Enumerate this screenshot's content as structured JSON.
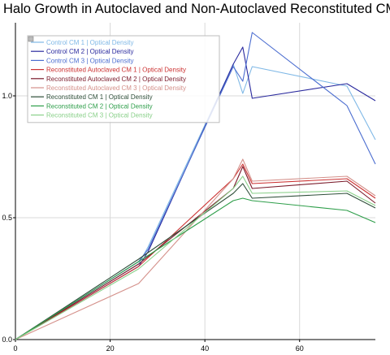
{
  "chart_data": {
    "type": "line",
    "title": "Halo Growth in Autoclaved and Non-Autoclaved Reconstituted CM",
    "xlabel": "",
    "ylabel": "",
    "xlim": [
      0,
      76
    ],
    "ylim": [
      0,
      1.3
    ],
    "x_ticks": [
      0,
      20,
      40,
      60
    ],
    "x_tick_labels": [
      "0",
      "20",
      "40",
      "60"
    ],
    "y_ticks": [
      0,
      0.5,
      1.0
    ],
    "y_tick_labels": [
      "0.0",
      "0.5",
      "1.0"
    ],
    "grid": true,
    "legend_position": "top-left",
    "series": [
      {
        "name": "Control CM 1 | Optical Density",
        "color": "#7fb8e6",
        "points": [
          [
            0,
            0
          ],
          [
            26,
            0.31
          ],
          [
            28,
            0.38
          ],
          [
            46,
            1.13
          ],
          [
            48,
            1.01
          ],
          [
            50,
            1.12
          ],
          [
            70,
            1.04
          ],
          [
            76,
            0.82
          ]
        ]
      },
      {
        "name": "Control CM 2 | Optical Density",
        "color": "#2a2a9e",
        "points": [
          [
            0,
            0
          ],
          [
            26,
            0.3
          ],
          [
            28,
            0.36
          ],
          [
            46,
            1.13
          ],
          [
            48,
            1.2
          ],
          [
            50,
            0.99
          ],
          [
            70,
            1.05
          ],
          [
            76,
            0.98
          ]
        ]
      },
      {
        "name": "Control CM 3 | Optical Density",
        "color": "#4c6ed0",
        "points": [
          [
            0,
            0
          ],
          [
            26,
            0.32
          ],
          [
            28,
            0.37
          ],
          [
            46,
            1.12
          ],
          [
            48,
            1.06
          ],
          [
            50,
            1.26
          ],
          [
            70,
            0.96
          ],
          [
            76,
            0.72
          ]
        ]
      },
      {
        "name": "Reconstituted Autoclaved CM 1 | Optical Density",
        "color": "#cc3333",
        "points": [
          [
            0,
            0
          ],
          [
            26,
            0.3
          ],
          [
            46,
            0.66
          ],
          [
            48,
            0.72
          ],
          [
            50,
            0.64
          ],
          [
            70,
            0.66
          ],
          [
            76,
            0.58
          ]
        ]
      },
      {
        "name": "Reconstituted Autoclaved CM 2 | Optical Density",
        "color": "#7a1a2a",
        "points": [
          [
            0,
            0
          ],
          [
            26,
            0.31
          ],
          [
            46,
            0.62
          ],
          [
            48,
            0.71
          ],
          [
            50,
            0.62
          ],
          [
            70,
            0.65
          ],
          [
            76,
            0.56
          ]
        ]
      },
      {
        "name": "Reconstituted Autoclaved CM 3 | Optical Density",
        "color": "#d4908a",
        "points": [
          [
            0,
            0
          ],
          [
            26,
            0.23
          ],
          [
            46,
            0.66
          ],
          [
            48,
            0.74
          ],
          [
            50,
            0.65
          ],
          [
            70,
            0.67
          ],
          [
            76,
            0.59
          ]
        ]
      },
      {
        "name": "Reconstituted CM 1 | Optical Density",
        "color": "#2f4f3a",
        "points": [
          [
            0,
            0
          ],
          [
            26,
            0.33
          ],
          [
            46,
            0.6
          ],
          [
            48,
            0.64
          ],
          [
            50,
            0.58
          ],
          [
            70,
            0.6
          ],
          [
            76,
            0.54
          ]
        ]
      },
      {
        "name": "Reconstituted CM 2 | Optical Density",
        "color": "#2e9e4a",
        "points": [
          [
            0,
            0
          ],
          [
            26,
            0.32
          ],
          [
            46,
            0.57
          ],
          [
            48,
            0.58
          ],
          [
            50,
            0.57
          ],
          [
            70,
            0.53
          ],
          [
            76,
            0.48
          ]
        ]
      },
      {
        "name": "Reconstituted CM 3 | Optical Density",
        "color": "#8ad08a",
        "points": [
          [
            0,
            0
          ],
          [
            26,
            0.29
          ],
          [
            46,
            0.62
          ],
          [
            48,
            0.67
          ],
          [
            50,
            0.6
          ],
          [
            70,
            0.61
          ],
          [
            76,
            0.55
          ]
        ]
      }
    ]
  }
}
